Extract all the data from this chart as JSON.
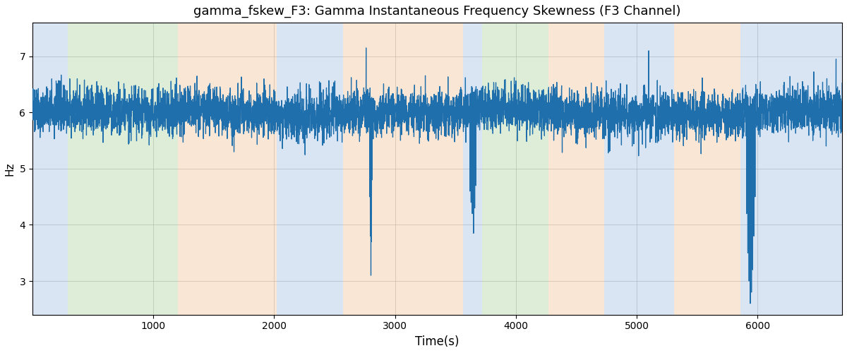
{
  "title": "gamma_fskew_F3: Gamma Instantaneous Frequency Skewness (F3 Channel)",
  "xlabel": "Time(s)",
  "ylabel": "Hz",
  "xlim": [
    0,
    6700
  ],
  "ylim": [
    2.4,
    7.6
  ],
  "yticks": [
    3,
    4,
    5,
    6,
    7
  ],
  "xticks": [
    1000,
    2000,
    3000,
    4000,
    5000,
    6000
  ],
  "line_color": "#1f6fad",
  "line_width": 0.9,
  "bg_bands": [
    {
      "start": 0,
      "end": 290,
      "color": "#aec6e8",
      "alpha": 0.45
    },
    {
      "start": 290,
      "end": 1200,
      "color": "#b5d9a8",
      "alpha": 0.45
    },
    {
      "start": 1200,
      "end": 2020,
      "color": "#f5c9a0",
      "alpha": 0.45
    },
    {
      "start": 2020,
      "end": 2570,
      "color": "#aec6e8",
      "alpha": 0.45
    },
    {
      "start": 2570,
      "end": 3560,
      "color": "#f5c9a0",
      "alpha": 0.45
    },
    {
      "start": 3560,
      "end": 3720,
      "color": "#aec6e8",
      "alpha": 0.45
    },
    {
      "start": 3720,
      "end": 4270,
      "color": "#b5d9a8",
      "alpha": 0.45
    },
    {
      "start": 4270,
      "end": 4730,
      "color": "#f5c9a0",
      "alpha": 0.45
    },
    {
      "start": 4730,
      "end": 5310,
      "color": "#aec6e8",
      "alpha": 0.45
    },
    {
      "start": 5310,
      "end": 5860,
      "color": "#f5c9a0",
      "alpha": 0.45
    },
    {
      "start": 5860,
      "end": 6700,
      "color": "#aec6e8",
      "alpha": 0.45
    }
  ],
  "seed": 17,
  "n_points": 6700,
  "base_value": 6.0,
  "noise_std": 0.18,
  "high_freq_std": 0.12
}
